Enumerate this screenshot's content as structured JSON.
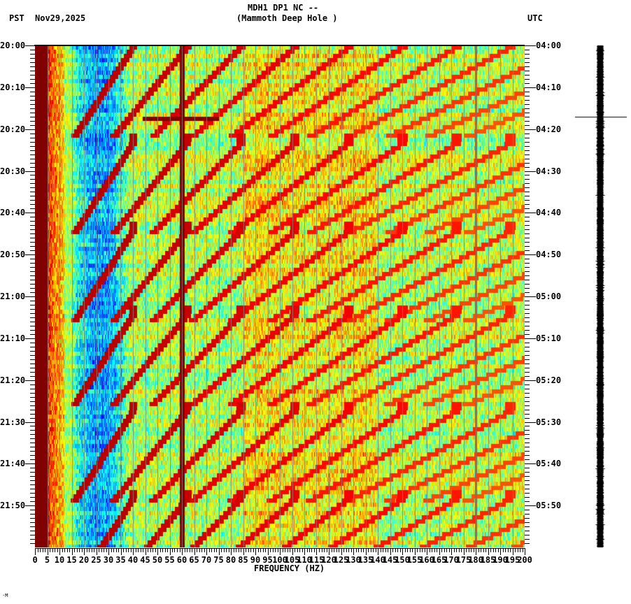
{
  "header": {
    "station": "MDH1 DP1 NC --",
    "location": "(Mammoth Deep Hole )",
    "left_timezone": "PST",
    "date": "Nov29,2025",
    "right_timezone": "UTC"
  },
  "footer": {
    "mark": "·M"
  },
  "chart_data": {
    "type": "heatmap",
    "title": "MDH1 DP1 NC -- (Mammoth Deep Hole )",
    "subtitle": "Nov29,2025",
    "xlabel": "FREQUENCY (HZ)",
    "ylabel_left": "PST",
    "ylabel_right": "UTC",
    "xlim": [
      0,
      200
    ],
    "x_ticks": [
      0,
      5,
      10,
      15,
      20,
      25,
      30,
      35,
      40,
      45,
      50,
      55,
      60,
      65,
      70,
      75,
      80,
      85,
      90,
      95,
      100,
      105,
      110,
      115,
      120,
      125,
      130,
      135,
      140,
      145,
      150,
      155,
      160,
      165,
      170,
      175,
      180,
      185,
      190,
      195,
      200
    ],
    "x_minor_tick_step": 1,
    "x_gridline_step": 5,
    "y_time_range_minutes": 120,
    "y_ticks_left": [
      "20:00",
      "20:10",
      "20:20",
      "20:30",
      "20:40",
      "20:50",
      "21:00",
      "21:10",
      "21:20",
      "21:30",
      "21:40",
      "21:50"
    ],
    "y_ticks_right": [
      "04:00",
      "04:10",
      "04:20",
      "04:30",
      "04:40",
      "04:50",
      "05:00",
      "05:10",
      "05:20",
      "05:30",
      "05:40",
      "05:50"
    ],
    "y_minor_tick_step_minutes": 1,
    "colormap": [
      "#00008f",
      "#0000ff",
      "#0080ff",
      "#00ffff",
      "#80ff80",
      "#ffff00",
      "#ff8000",
      "#ff0000",
      "#800000"
    ],
    "features": {
      "persistent_lines_hz": [
        60,
        180
      ],
      "strong_low_frequency_band_hz": [
        0,
        5
      ],
      "low_power_band_hz": [
        15,
        35
      ],
      "sweep_event_start_times_pst": [
        "20:00",
        "20:23",
        "20:44",
        "21:04",
        "21:27",
        "21:48"
      ],
      "sweep_period_minutes": 21.5,
      "sweep_harmonic_count": 11,
      "horizontal_burst": {
        "time_pst": "20:17",
        "freq_range_hz": [
          44,
          75
        ]
      },
      "noise_floor_level": 0.55
    },
    "trace_panel": {
      "marker_time_pst": "20:17"
    }
  }
}
